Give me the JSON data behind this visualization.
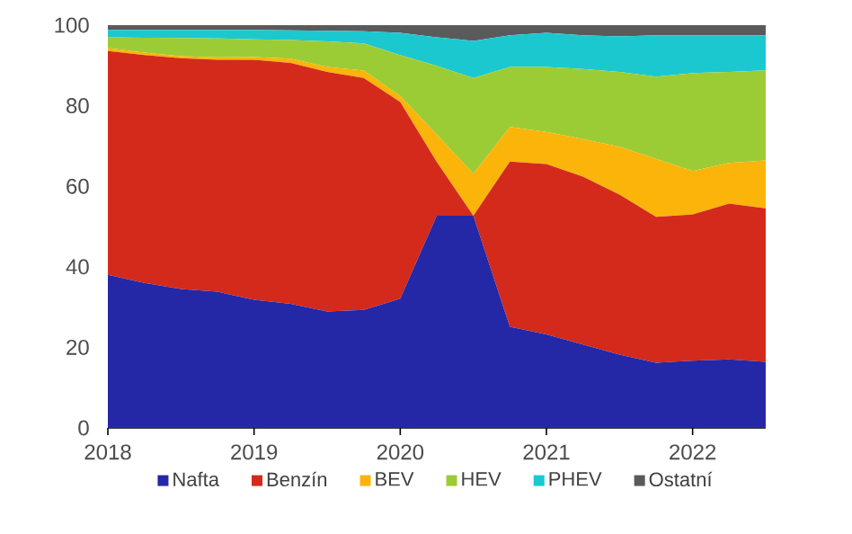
{
  "chart_data": {
    "type": "area",
    "stacked": true,
    "x": [
      2018,
      2018.25,
      2018.5,
      2018.75,
      2019,
      2019.25,
      2019.5,
      2019.75,
      2020,
      2020.25,
      2020.5,
      2020.75,
      2021,
      2021.25,
      2021.5,
      2021.75,
      2022,
      2022.25,
      2022.5
    ],
    "series": [
      {
        "name": "Nafta",
        "color": "#2427a6",
        "values": [
          38,
          36,
          34.5,
          33.8,
          31.8,
          30.8,
          28.9,
          29.3,
          32.1,
          52.7,
          52.7,
          25.1,
          23.2,
          20.7,
          18.2,
          16.2,
          16.7,
          17,
          16.4
        ]
      },
      {
        "name": "Benzín",
        "color": "#d42a1c",
        "values": [
          55.6,
          56.6,
          57.3,
          57.6,
          59.6,
          59.8,
          59.5,
          57.6,
          48.8,
          13.3,
          0,
          41,
          42.3,
          41.7,
          39.7,
          36.2,
          36.3,
          38.7,
          38.1
        ]
      },
      {
        "name": "BEV",
        "color": "#fbb40a",
        "values": [
          0.7,
          0.6,
          0.5,
          0.6,
          0.7,
          1.1,
          1.2,
          1.8,
          1.5,
          6.8,
          10.4,
          8.6,
          8,
          9.3,
          11.9,
          14.4,
          10.8,
          10.1,
          11.9
        ]
      },
      {
        "name": "HEV",
        "color": "#9ccc35",
        "values": [
          2.7,
          3.7,
          4.5,
          4.7,
          4.4,
          4.6,
          6.4,
          6.8,
          10.2,
          17.1,
          23.8,
          14.9,
          16.1,
          17.4,
          18.6,
          20.4,
          24.3,
          22.6,
          22.4
        ]
      },
      {
        "name": "PHEV",
        "color": "#1cc8d0",
        "values": [
          1.8,
          1.9,
          2,
          2.1,
          2.3,
          2.4,
          2.6,
          3,
          5.5,
          7.1,
          9.2,
          7.9,
          8.5,
          8.4,
          8.8,
          10.3,
          9.4,
          9.1,
          8.7
        ]
      },
      {
        "name": "Ostatní",
        "color": "#5a5a5a",
        "values": [
          1.2,
          1.2,
          1.2,
          1.2,
          1.2,
          1.3,
          1.4,
          1.5,
          1.9,
          3,
          3.9,
          2.5,
          1.9,
          2.5,
          2.8,
          2.5,
          2.5,
          2.5,
          2.5
        ]
      }
    ],
    "xlim": [
      2018,
      2022.5
    ],
    "xticks": [
      2018,
      2019,
      2020,
      2021,
      2022
    ],
    "ylim": [
      0,
      100
    ],
    "yticks": [
      0,
      20,
      40,
      60,
      80,
      100
    ],
    "legend": "bottom"
  }
}
